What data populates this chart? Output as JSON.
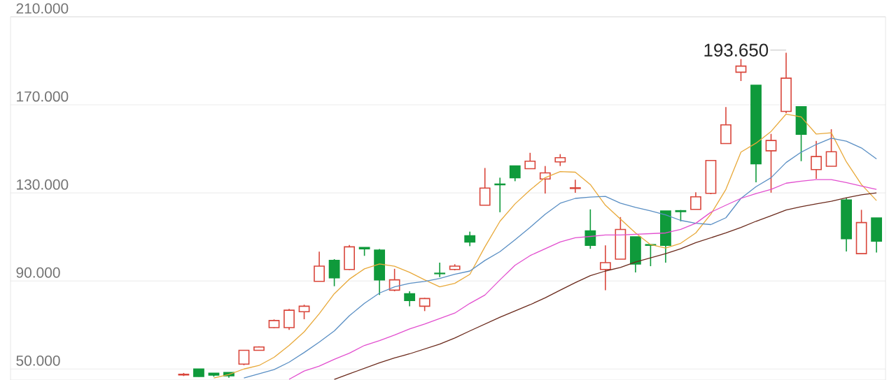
{
  "chart_data": {
    "type": "candlestick",
    "categories": [
      null,
      null,
      null,
      null,
      null,
      null,
      null,
      null,
      null,
      null,
      null,
      null,
      null,
      null,
      null,
      null,
      null,
      null,
      null,
      null,
      null,
      null,
      null,
      null,
      null,
      null,
      null,
      null,
      null,
      null,
      null,
      null,
      null,
      null,
      null,
      null,
      null,
      null,
      null,
      null,
      null,
      null,
      null,
      null,
      null,
      null,
      null,
      null,
      null,
      null,
      null,
      null,
      null,
      null,
      null,
      null,
      null,
      null
    ],
    "ohlc": [
      null,
      null,
      null,
      null,
      null,
      null,
      null,
      null,
      null,
      null,
      null,
      [
        47.3,
        48.2,
        46.8,
        47.6
      ],
      [
        50,
        50,
        46.5,
        46.6
      ],
      [
        48.1,
        48.1,
        46.5,
        47.2
      ],
      [
        48.4,
        48.4,
        46,
        46.9
      ],
      [
        52.2,
        58.5,
        51.7,
        58.5
      ],
      [
        58.5,
        60.3,
        58.3,
        60
      ],
      [
        68.8,
        72.5,
        68.5,
        72
      ],
      [
        68.8,
        77.3,
        67.8,
        76.7
      ],
      [
        76,
        79.2,
        72.6,
        78.5
      ],
      [
        89.8,
        103.3,
        89.8,
        96.7
      ],
      [
        99.3,
        99.9,
        87.6,
        91.4
      ],
      [
        95.2,
        106.3,
        95,
        105.5
      ],
      [
        105.2,
        105.2,
        101.4,
        104.6
      ],
      [
        104,
        104.5,
        83.6,
        90.5
      ],
      [
        85.8,
        95.5,
        85.3,
        90.5
      ],
      [
        84.2,
        85.3,
        78.5,
        81.1
      ],
      [
        78.5,
        82.3,
        76.3,
        82
      ],
      [
        93.5,
        98.3,
        91.7,
        93.3
      ],
      [
        95.2,
        97.6,
        94.8,
        96.7
      ],
      [
        110.5,
        112.4,
        105.8,
        107.7
      ],
      [
        124.4,
        141.3,
        124.4,
        132.2
      ],
      [
        134,
        136.9,
        121.2,
        133.7
      ],
      [
        142.2,
        142.2,
        135.3,
        136.9
      ],
      [
        141,
        148.2,
        141,
        144.4
      ],
      [
        136.3,
        142.2,
        129.7,
        139.1
      ],
      [
        144.1,
        147.6,
        142.2,
        146
      ],
      [
        132,
        136,
        130,
        132.3
      ],
      [
        112.7,
        122.5,
        104.6,
        106.2
      ],
      [
        95.2,
        106.2,
        85.8,
        98.3
      ],
      [
        99.9,
        119,
        99.9,
        113.4
      ],
      [
        110,
        110,
        93.9,
        97.7
      ],
      [
        106.5,
        106.5,
        96.7,
        106.2
      ],
      [
        121.8,
        121.8,
        98.3,
        106.2
      ],
      [
        121.9,
        122.2,
        117.1,
        121.5
      ],
      [
        122.5,
        130.3,
        122.5,
        128.2
      ],
      [
        129.8,
        144.7,
        129.4,
        144.7
      ],
      [
        152.4,
        169,
        152.3,
        160.9
      ],
      [
        184.8,
        190.8,
        180.8,
        187.6
      ],
      [
        178.9,
        178.9,
        134.8,
        143.2
      ],
      [
        149.1,
        156.8,
        130.1,
        153.8
      ],
      [
        167,
        193.65,
        166.2,
        182.1
      ],
      [
        169.1,
        169.1,
        144.4,
        156.6
      ],
      [
        140.6,
        153.6,
        136.4,
        146.5
      ],
      [
        142.1,
        158.9,
        142.1,
        148.7
      ],
      [
        126.8,
        127.8,
        103.4,
        109.2
      ],
      [
        102.4,
        122.3,
        102.4,
        116.5
      ],
      [
        118.6,
        118.6,
        102.9,
        108.1
      ]
    ],
    "colors": [
      null,
      null,
      null,
      null,
      null,
      null,
      null,
      null,
      null,
      null,
      null,
      "#d9463b",
      "#0f9a3b",
      "#0f9a3b",
      "#0f9a3b",
      "#d9463b",
      "#d9463b",
      "#d9463b",
      "#d9463b",
      "#d9463b",
      "#d9463b",
      "#0f9a3b",
      "#d9463b",
      "#0f9a3b",
      "#0f9a3b",
      "#d9463b",
      "#0f9a3b",
      "#d9463b",
      "#0f9a3b",
      "#d9463b",
      "#0f9a3b",
      "#d9463b",
      "#0f9a3b",
      "#0f9a3b",
      "#d9463b",
      "#d9463b",
      "#d9463b",
      "#d9463b",
      "#0f9a3b",
      "#d9463b",
      "#d9463b",
      "#0f9a3b",
      "#0f9a3b",
      "#0f9a3b",
      "#0f9a3b",
      "#d9463b",
      "#d9463b",
      "#d9463b",
      "#d9463b",
      "#0f9a3b",
      "#d9463b",
      "#d9463b",
      "#0f9a3b",
      "#d9463b",
      "#d9463b",
      "#0f9a3b",
      "#d9463b",
      "#0f9a3b"
    ],
    "series": [
      {
        "type": "line",
        "color": "#e8a93a",
        "values": [
          null,
          null,
          null,
          null,
          null,
          null,
          null,
          null,
          null,
          null,
          null,
          null,
          null,
          45.9,
          47.5,
          50,
          51.6,
          55.3,
          60.7,
          66.9,
          75.1,
          84.2,
          90.8,
          95.5,
          97.7,
          96.7,
          93.9,
          90.5,
          87.3,
          88.9,
          93,
          105.5,
          117.1,
          125,
          131.3,
          136.9,
          139.7,
          139.4,
          133.8,
          124.4,
          118.1,
          111.8,
          106.5,
          104.9,
          107.1,
          111.8,
          120.3,
          131.6,
          148.5,
          152.6,
          157.9,
          165.8,
          164.5,
          156.7,
          157.3,
          144.1,
          133.8,
          126.5
        ]
      },
      {
        "type": "line",
        "color": "#5a8fc4",
        "values": [
          null,
          null,
          null,
          null,
          null,
          null,
          null,
          null,
          null,
          null,
          null,
          null,
          null,
          null,
          null,
          45.9,
          47.8,
          49.7,
          53.1,
          57.5,
          62.2,
          67.3,
          74.2,
          79.8,
          84.5,
          87.3,
          88.9,
          89.8,
          91.1,
          93,
          94.5,
          99.3,
          103.3,
          108.7,
          114.3,
          120.3,
          125.3,
          127.5,
          128.1,
          128.4,
          125.3,
          123.4,
          121.8,
          120,
          117.5,
          116.2,
          115.6,
          118.7,
          127.5,
          132.8,
          136.9,
          143.8,
          148.5,
          152,
          154.8,
          153.5,
          150.4,
          145.4
        ]
      },
      {
        "type": "line",
        "color": "#e24fcf",
        "values": [
          null,
          null,
          null,
          null,
          null,
          null,
          null,
          null,
          null,
          null,
          null,
          null,
          null,
          null,
          null,
          null,
          null,
          null,
          45.3,
          49.1,
          51.3,
          54.4,
          57.2,
          60.7,
          62.9,
          65.4,
          68.2,
          70.4,
          72.9,
          75.4,
          79.8,
          83.6,
          90.5,
          97.1,
          101.5,
          104.6,
          107.7,
          109.6,
          110.2,
          110.9,
          110.9,
          111.2,
          111.5,
          111.8,
          113.4,
          116.2,
          121.2,
          124.4,
          127.5,
          129.7,
          131.6,
          134.4,
          135.3,
          136,
          136,
          134.7,
          133.1,
          131.6
        ]
      },
      {
        "type": "line",
        "color": "#6b2a1c",
        "values": [
          null,
          null,
          null,
          null,
          null,
          null,
          null,
          null,
          null,
          null,
          null,
          null,
          null,
          null,
          null,
          null,
          null,
          null,
          null,
          null,
          null,
          45.3,
          47.8,
          50.3,
          52.8,
          55,
          56.9,
          59.1,
          61.3,
          64.1,
          67.3,
          70.4,
          73.5,
          76.4,
          79.2,
          82.3,
          85.8,
          89.2,
          92.4,
          94.5,
          96.1,
          98.6,
          100.5,
          102.4,
          104.6,
          107.4,
          109.6,
          111.8,
          114.3,
          117.1,
          119.6,
          122.2,
          123.7,
          125,
          126.2,
          127.8,
          129.1,
          130
        ]
      }
    ],
    "ylim": [
      45,
      210
    ],
    "yticks": [
      {
        "value": 50,
        "label": "50.000"
      },
      {
        "value": 90,
        "label": "90.000"
      },
      {
        "value": 130,
        "label": "130.000"
      },
      {
        "value": 170,
        "label": "170.000"
      },
      {
        "value": 210,
        "label": "210.000"
      }
    ],
    "grid": "y",
    "tick_labels": "y",
    "annotations": [
      "193.650"
    ]
  }
}
